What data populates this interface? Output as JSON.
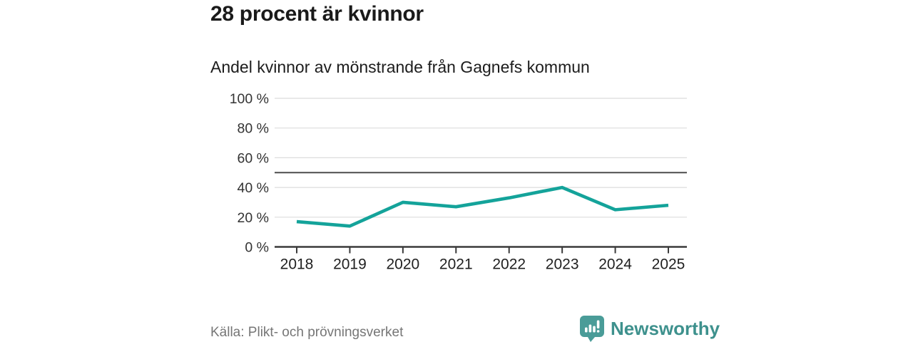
{
  "header": {
    "title": "28 procent är kvinnor",
    "subtitle": "Andel kvinnor av mönstrande från Gagnefs kommun"
  },
  "chart_data": {
    "type": "line",
    "categories": [
      "2018",
      "2019",
      "2020",
      "2021",
      "2022",
      "2023",
      "2024",
      "2025"
    ],
    "values": [
      17,
      14,
      30,
      27,
      33,
      40,
      25,
      28
    ],
    "title": "28 procent är kvinnor",
    "subtitle": "Andel kvinnor av mönstrande från Gagnefs kommun",
    "xlabel": "",
    "ylabel": "",
    "ylim": [
      0,
      100
    ],
    "yticks": [
      0,
      20,
      40,
      60,
      80,
      100
    ],
    "ytick_suffix": " %",
    "reference_line": 50,
    "grid": "horizontal",
    "legend": "none",
    "line_color": "#14a39a",
    "grid_color": "#dcdcdc",
    "axis_color": "#3a3a3a",
    "reference_color": "#4d4d4d",
    "ytick_label_color": "#333333",
    "xtick_label_color": "#1f1f1f"
  },
  "footer": {
    "source": "Källa: Plikt- och prövningsverket",
    "brand": "Newsworthy",
    "brand_color": "#3e918d",
    "logo_icon": "bar-chart-speech-bubble",
    "logo_color": "#4a9c98"
  }
}
